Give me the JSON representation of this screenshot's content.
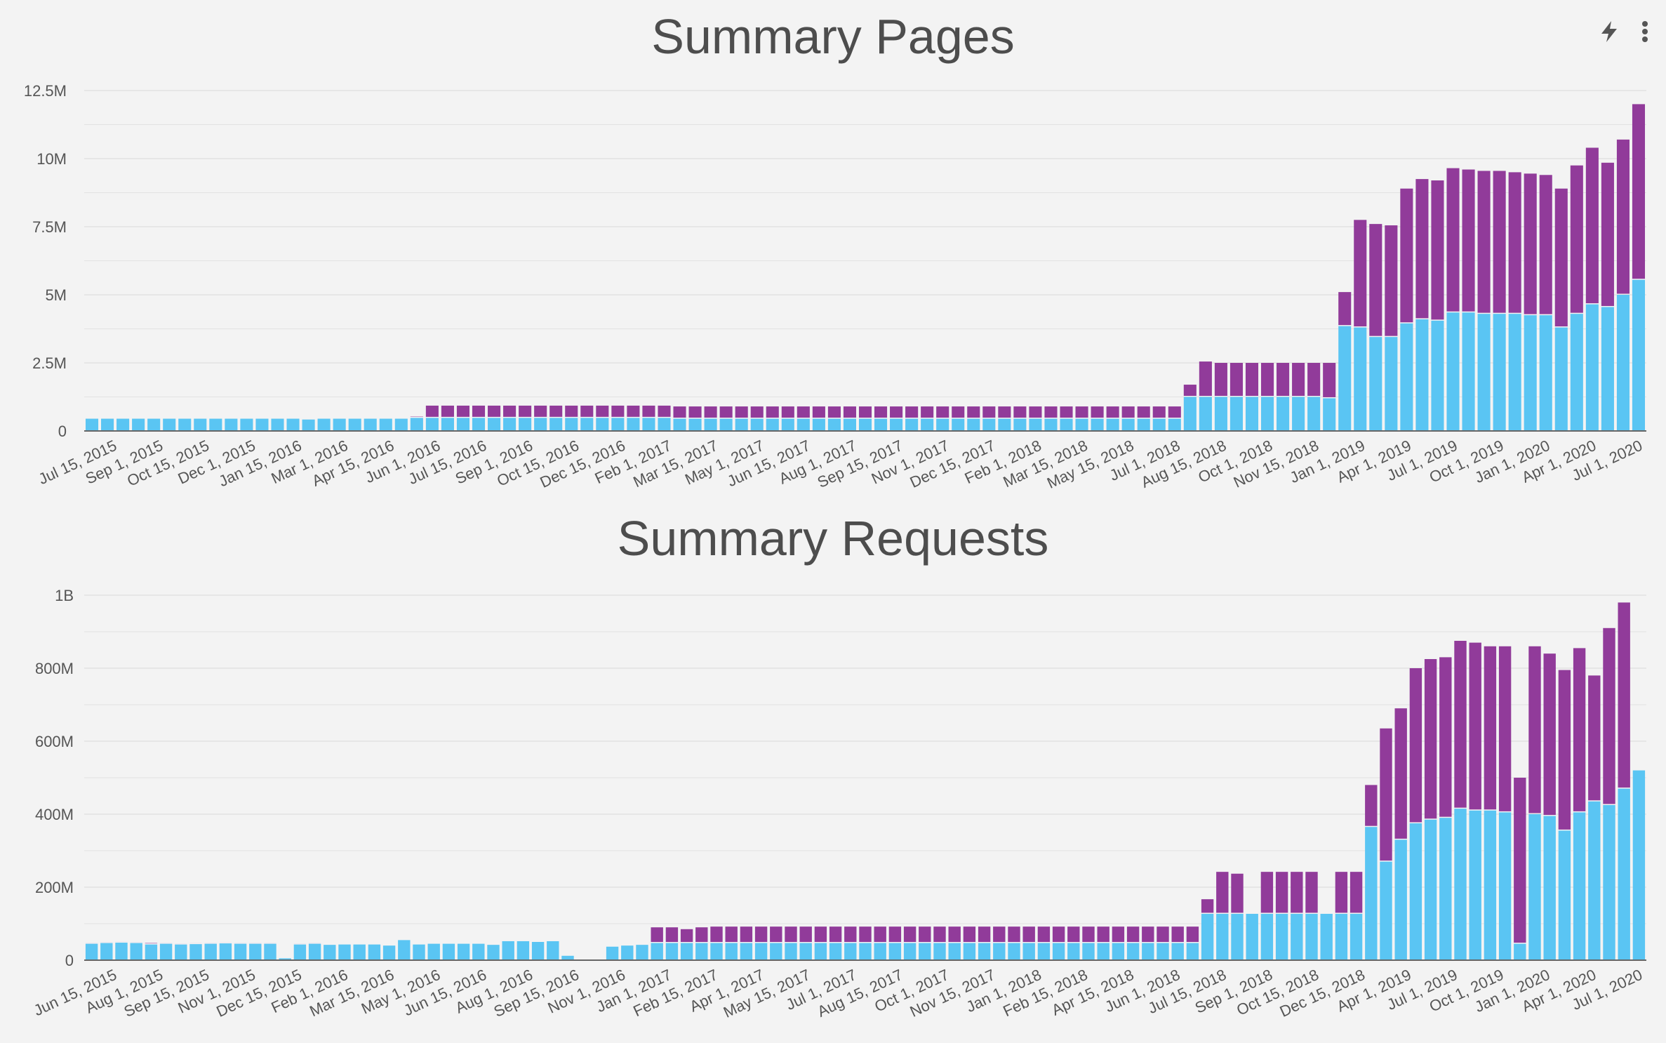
{
  "toolbar": {
    "bolt_icon": "bolt-icon",
    "more_icon": "more-vert-icon"
  },
  "colors": {
    "bottom_series": "#5ac5f3",
    "top_series": "#913b9a",
    "grid": "#e2e2e2",
    "axis": "#666666"
  },
  "chart_data": [
    {
      "type": "bar",
      "stacked": true,
      "title": "Summary Pages",
      "ylim": [
        0,
        12500000
      ],
      "yticks": [
        0,
        2500000,
        5000000,
        7500000,
        10000000,
        12500000
      ],
      "ytick_labels": [
        "0",
        "2.5M",
        "5M",
        "7.5M",
        "10M",
        "12.5M"
      ],
      "xtick_labels": [
        "Jul 15, 2015",
        "Sep 1, 2015",
        "Oct 15, 2015",
        "Dec 1, 2015",
        "Jan 15, 2016",
        "Mar 1, 2016",
        "Apr 15, 2016",
        "Jun 1, 2016",
        "Jul 15, 2016",
        "Sep 1, 2016",
        "Oct 15, 2016",
        "Dec 15, 2016",
        "Feb 1, 2017",
        "Mar 15, 2017",
        "May 1, 2017",
        "Jun 15, 2017",
        "Aug 1, 2017",
        "Sep 15, 2017",
        "Nov 1, 2017",
        "Dec 15, 2017",
        "Feb 1, 2018",
        "Mar 15, 2018",
        "May 15, 2018",
        "Jul 1, 2018",
        "Aug 15, 2018",
        "Oct 1, 2018",
        "Nov 15, 2018",
        "Jan 1, 2019",
        "Apr 1, 2019",
        "Jul 1, 2019",
        "Oct 1, 2019",
        "Jan 1, 2020",
        "Apr 1, 2020",
        "Jul 1, 2020"
      ],
      "series": [
        {
          "values": [
            0.45,
            0.45,
            0.45,
            0.45,
            0.45,
            0.45,
            0.45,
            0.45,
            0.45,
            0.45,
            0.45,
            0.45,
            0.45,
            0.45,
            0.42,
            0.45,
            0.45,
            0.45,
            0.45,
            0.45,
            0.45,
            0.48,
            0.48,
            0.48,
            0.48,
            0.48,
            0.48,
            0.48,
            0.48,
            0.48,
            0.48,
            0.48,
            0.48,
            0.48,
            0.48,
            0.48,
            0.48,
            0.48,
            0.45,
            0.45,
            0.45,
            0.45,
            0.45,
            0.45,
            0.45,
            0.45,
            0.45,
            0.45,
            0.45,
            0.45,
            0.45,
            0.45,
            0.45,
            0.45,
            0.45,
            0.45,
            0.45,
            0.45,
            0.45,
            0.45,
            0.45,
            0.45,
            0.45,
            0.45,
            0.45,
            0.45,
            0.45,
            0.45,
            0.45,
            0.45,
            0.45,
            1.25,
            1.25,
            1.25,
            1.25,
            1.25,
            1.25,
            1.25,
            1.25,
            1.25,
            1.2,
            3.85,
            3.8,
            3.45,
            3.45,
            3.95,
            4.1,
            4.05,
            4.35,
            4.35,
            4.3,
            4.3,
            4.3,
            4.25,
            4.25,
            3.8,
            4.3,
            4.65,
            4.55,
            5.0,
            5.55
          ]
        },
        {
          "values": [
            0.0,
            0.0,
            0.0,
            0.0,
            0.0,
            0.0,
            0.0,
            0.0,
            0.0,
            0.0,
            0.0,
            0.0,
            0.0,
            0.0,
            0.0,
            0.0,
            0.0,
            0.0,
            0.0,
            0.0,
            0.0,
            0.05,
            0.45,
            0.45,
            0.45,
            0.45,
            0.45,
            0.45,
            0.45,
            0.45,
            0.45,
            0.45,
            0.45,
            0.45,
            0.45,
            0.45,
            0.45,
            0.45,
            0.45,
            0.45,
            0.45,
            0.45,
            0.45,
            0.45,
            0.45,
            0.45,
            0.45,
            0.45,
            0.45,
            0.45,
            0.45,
            0.45,
            0.45,
            0.45,
            0.45,
            0.45,
            0.45,
            0.45,
            0.45,
            0.45,
            0.45,
            0.45,
            0.45,
            0.45,
            0.45,
            0.45,
            0.45,
            0.45,
            0.45,
            0.45,
            0.45,
            0.45,
            1.3,
            1.25,
            1.25,
            1.25,
            1.25,
            1.25,
            1.25,
            1.25,
            1.3,
            1.25,
            3.95,
            4.15,
            4.1,
            4.95,
            5.15,
            5.15,
            5.3,
            5.25,
            5.25,
            5.25,
            5.2,
            5.2,
            5.15,
            5.1,
            5.45,
            5.75,
            5.3,
            5.7,
            6.45
          ]
        }
      ],
      "value_scale": 1000000
    },
    {
      "type": "bar",
      "stacked": true,
      "title": "Summary Requests",
      "ylim": [
        0,
        1000000000
      ],
      "yticks": [
        0,
        200000000,
        400000000,
        600000000,
        800000000,
        1000000000
      ],
      "ytick_labels": [
        "0",
        "200M",
        "400M",
        "600M",
        "800M",
        "1B"
      ],
      "xtick_labels": [
        "Jun 15, 2015",
        "Aug 1, 2015",
        "Sep 15, 2015",
        "Nov 1, 2015",
        "Dec 15, 2015",
        "Feb 1, 2016",
        "Mar 15, 2016",
        "May 1, 2016",
        "Jun 15, 2016",
        "Aug 1, 2016",
        "Sep 15, 2016",
        "Nov 1, 2016",
        "Jan 1, 2017",
        "Feb 15, 2017",
        "Apr 1, 2017",
        "May 15, 2017",
        "Jul 1, 2017",
        "Aug 15, 2017",
        "Oct 1, 2017",
        "Nov 15, 2017",
        "Jan 1, 2018",
        "Feb 15, 2018",
        "Apr 15, 2018",
        "Jun 1, 2018",
        "Jul 15, 2018",
        "Sep 1, 2018",
        "Oct 15, 2018",
        "Dec 15, 2018",
        "Apr 1, 2019",
        "Jul 1, 2019",
        "Oct 1, 2019",
        "Jan 1, 2020",
        "Apr 1, 2020",
        "Jul 1, 2020"
      ],
      "series": [
        {
          "values": [
            45,
            47,
            48,
            47,
            43,
            45,
            43,
            44,
            45,
            46,
            45,
            45,
            45,
            5,
            43,
            45,
            42,
            43,
            43,
            43,
            40,
            55,
            43,
            45,
            45,
            45,
            45,
            42,
            52,
            52,
            50,
            52,
            12,
            0,
            0,
            37,
            40,
            42,
            47,
            47,
            47,
            47,
            47,
            47,
            47,
            47,
            47,
            47,
            47,
            47,
            47,
            47,
            47,
            47,
            47,
            47,
            47,
            47,
            47,
            47,
            47,
            47,
            47,
            47,
            47,
            47,
            47,
            47,
            47,
            47,
            47,
            47,
            47,
            47,
            47,
            127,
            127,
            127,
            127,
            127,
            127,
            127,
            127,
            127,
            127,
            127,
            365,
            270,
            330,
            375,
            385,
            390,
            415,
            410,
            410,
            405,
            45,
            400,
            395,
            355,
            405,
            435,
            425,
            470,
            520
          ]
        },
        {
          "values": [
            3,
            3,
            3,
            3,
            4,
            3,
            3,
            3,
            3,
            3,
            3,
            3,
            3,
            2,
            3,
            3,
            0,
            0,
            0,
            0,
            0,
            0,
            0,
            0,
            0,
            0,
            0,
            0,
            0,
            0,
            0,
            0,
            0,
            0,
            0,
            0,
            0,
            0,
            43,
            43,
            38,
            43,
            45,
            45,
            45,
            45,
            45,
            45,
            45,
            45,
            45,
            45,
            45,
            45,
            45,
            45,
            45,
            45,
            45,
            45,
            45,
            45,
            45,
            45,
            45,
            45,
            45,
            45,
            45,
            45,
            45,
            45,
            45,
            45,
            45,
            40,
            115,
            110,
            0,
            115,
            115,
            115,
            115,
            0,
            115,
            115,
            115,
            365,
            360,
            425,
            440,
            440,
            460,
            460,
            450,
            455,
            455,
            460,
            445,
            440,
            450,
            345,
            485,
            510,
            0
          ]
        }
      ],
      "value_scale": 1000000
    }
  ]
}
